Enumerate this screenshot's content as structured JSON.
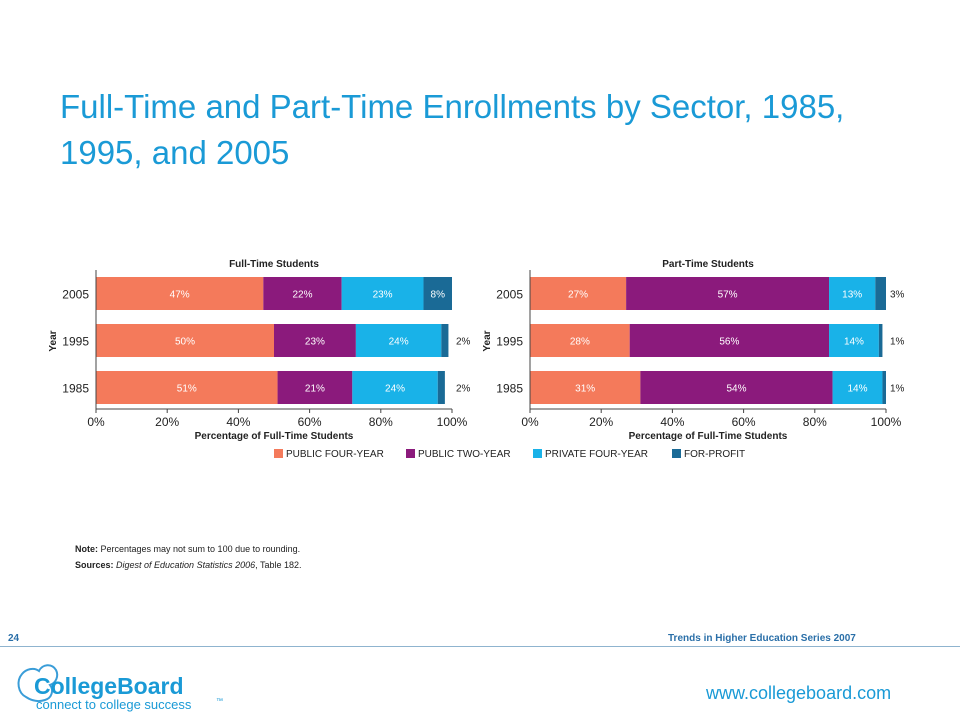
{
  "title": "Full-Time and Part-Time Enrollments by Sector, 1985, 1995, and 2005",
  "colors": {
    "public_four_year": "#f47a5b",
    "public_two_year": "#8b1a7c",
    "private_four_year": "#19b2e8",
    "for_profit": "#1a6a96",
    "title": "#1a9ad6"
  },
  "chart_data": [
    {
      "type": "bar",
      "orientation": "horizontal-stacked",
      "title": "Full-Time Students",
      "xlabel": "Percentage of Full-Time Students",
      "ylabel": "Year",
      "categories": [
        "2005",
        "1995",
        "1985"
      ],
      "xlim": [
        0,
        100
      ],
      "xticks": [
        "0%",
        "20%",
        "40%",
        "60%",
        "80%",
        "100%"
      ],
      "series": [
        {
          "name": "PUBLIC FOUR-YEAR",
          "values": [
            47,
            50,
            51
          ],
          "labels": [
            "47%",
            "50%",
            "51%"
          ]
        },
        {
          "name": "PUBLIC TWO-YEAR",
          "values": [
            22,
            23,
            21
          ],
          "labels": [
            "22%",
            "23%",
            "21%"
          ]
        },
        {
          "name": "PRIVATE FOUR-YEAR",
          "values": [
            23,
            24,
            24
          ],
          "labels": [
            "23%",
            "24%",
            "24%"
          ]
        },
        {
          "name": "FOR-PROFIT",
          "values": [
            8,
            2,
            2
          ],
          "labels": [
            "8%",
            "2%",
            "2%"
          ]
        }
      ]
    },
    {
      "type": "bar",
      "orientation": "horizontal-stacked",
      "title": "Part-Time Students",
      "xlabel": "Percentage of Full-Time Students",
      "ylabel": "Year",
      "categories": [
        "2005",
        "1995",
        "1985"
      ],
      "xlim": [
        0,
        100
      ],
      "xticks": [
        "0%",
        "20%",
        "40%",
        "60%",
        "80%",
        "100%"
      ],
      "series": [
        {
          "name": "PUBLIC FOUR-YEAR",
          "values": [
            27,
            28,
            31
          ],
          "labels": [
            "27%",
            "28%",
            "31%"
          ]
        },
        {
          "name": "PUBLIC TWO-YEAR",
          "values": [
            57,
            56,
            54
          ],
          "labels": [
            "57%",
            "56%",
            "54%"
          ]
        },
        {
          "name": "PRIVATE FOUR-YEAR",
          "values": [
            13,
            14,
            14
          ],
          "labels": [
            "13%",
            "14%",
            "14%"
          ]
        },
        {
          "name": "FOR-PROFIT",
          "values": [
            3,
            1,
            1
          ],
          "labels": [
            "3%",
            "1%",
            "1%"
          ]
        }
      ]
    }
  ],
  "legend": [
    "PUBLIC FOUR-YEAR",
    "PUBLIC TWO-YEAR",
    "PRIVATE FOUR-YEAR",
    "FOR-PROFIT"
  ],
  "note": {
    "note_label": "Note:",
    "note_text": " Percentages may not sum to 100 due to rounding.",
    "sources_label": "Sources:",
    "sources_italic": " Digest of Education Statistics 2006",
    "sources_text": ", Table 182."
  },
  "footer": {
    "page_number": "24",
    "series": "Trends in Higher Education Series 2007",
    "url": "www.collegeboard.com",
    "logo_name": "CollegeBoard",
    "logo_tagline": "connect to college success",
    "logo_tm": "™"
  }
}
